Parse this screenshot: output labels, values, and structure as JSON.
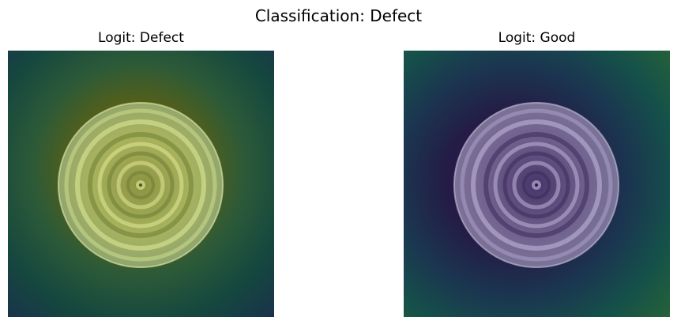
{
  "figure": {
    "title": "Classification: Defect"
  },
  "panels": [
    {
      "title": "Logit: Defect",
      "heatmap": {
        "colormap": "viridis",
        "hotspot": "center-left (yellow)",
        "coldspot": "top-right and bottom-right (dark purple)"
      }
    },
    {
      "title": "Logit: Good",
      "heatmap": {
        "colormap": "viridis",
        "hotspot": "top-right and bottom-right corners (yellow)",
        "coldspot": "center-left (dark purple)"
      }
    }
  ],
  "colors": {
    "viridis_dark": "#440154",
    "viridis_mid": "#21918c",
    "viridis_bright": "#fde725"
  }
}
